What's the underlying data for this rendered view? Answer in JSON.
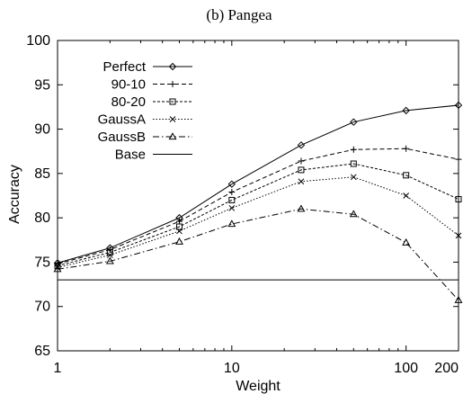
{
  "chart_data": {
    "type": "line",
    "title": "(b) Pangea",
    "xlabel": "Weight",
    "ylabel": "Accuracy",
    "xscale": "log",
    "xlim": [
      1,
      200
    ],
    "ylim": [
      65,
      100
    ],
    "xticks": [
      1,
      10,
      100,
      200
    ],
    "xtick_labels": [
      "1",
      "10",
      "100",
      "200"
    ],
    "yticks": [
      65,
      70,
      75,
      80,
      85,
      90,
      95,
      100
    ],
    "ytick_labels": [
      "65",
      "70",
      "75",
      "80",
      "85",
      "90",
      "95",
      "100"
    ],
    "grid": false,
    "legend_position": "top-left",
    "x": [
      1,
      2,
      5,
      10,
      25,
      50,
      100,
      200
    ],
    "series": [
      {
        "name": "Perfect",
        "marker": "diamond",
        "dash": "solid",
        "values": [
          74.9,
          76.6,
          80.0,
          83.8,
          88.2,
          90.8,
          92.1,
          92.7
        ]
      },
      {
        "name": "90-10",
        "marker": "plus",
        "dash": "dashed",
        "values": [
          74.8,
          76.4,
          79.6,
          82.9,
          86.4,
          87.7,
          87.8,
          86.6
        ]
      },
      {
        "name": "80-20",
        "marker": "square",
        "dash": "dotted-dense",
        "values": [
          74.6,
          76.1,
          79.0,
          82.0,
          85.4,
          86.1,
          84.8,
          82.1
        ]
      },
      {
        "name": "GaussA",
        "marker": "cross",
        "dash": "dotted",
        "values": [
          74.4,
          75.8,
          78.5,
          81.1,
          84.1,
          84.6,
          82.5,
          78.0
        ]
      },
      {
        "name": "GaussB",
        "marker": "triangle",
        "dash": "dashdot",
        "values": [
          74.2,
          75.1,
          77.3,
          79.3,
          81.0,
          80.4,
          77.2,
          70.7
        ]
      },
      {
        "name": "Base",
        "marker": "none",
        "dash": "solid",
        "values": [
          73.0,
          73.0,
          73.0,
          73.0,
          73.0,
          73.0,
          73.0,
          73.0
        ]
      }
    ]
  }
}
